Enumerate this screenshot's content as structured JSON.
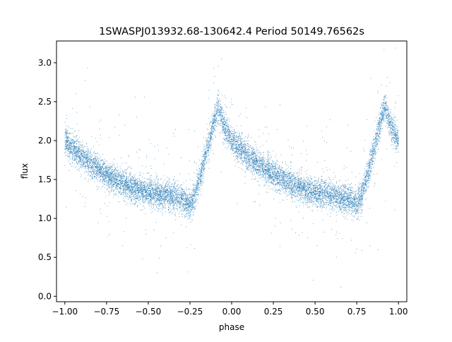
{
  "chart_data": {
    "type": "scatter",
    "title": "1SWASPJ013932.68-130642.4 Period 50149.76562s",
    "xlabel": "phase",
    "ylabel": "flux",
    "xlim": [
      -1.05,
      1.05
    ],
    "ylim": [
      -0.07,
      3.28
    ],
    "grid": false,
    "legend": "none",
    "point_color": "#1f77b4",
    "x_ticks": [
      -1.0,
      -0.75,
      -0.5,
      -0.25,
      0.0,
      0.25,
      0.5,
      0.75,
      1.0
    ],
    "x_tick_labels": [
      "−1.00",
      "−0.75",
      "−0.50",
      "−0.25",
      "0.00",
      "0.25",
      "0.50",
      "0.75",
      "1.00"
    ],
    "y_ticks": [
      0.0,
      0.5,
      1.0,
      1.5,
      2.0,
      2.5,
      3.0
    ],
    "y_tick_labels": [
      "0.0",
      "0.5",
      "1.0",
      "1.5",
      "2.0",
      "2.5",
      "3.0"
    ],
    "light_curve_profile": {
      "phase": [
        0.0,
        0.1,
        0.2,
        0.3,
        0.4,
        0.5,
        0.6,
        0.65,
        0.7,
        0.75,
        0.78,
        0.82,
        0.86,
        0.9,
        0.92,
        0.95,
        1.0
      ],
      "flux": [
        2.0,
        1.8,
        1.63,
        1.5,
        1.4,
        1.33,
        1.3,
        1.28,
        1.25,
        1.18,
        1.3,
        1.6,
        1.95,
        2.3,
        2.45,
        2.2,
        2.0
      ],
      "scatter_sigma": 0.09,
      "n_points": 11000
    }
  }
}
